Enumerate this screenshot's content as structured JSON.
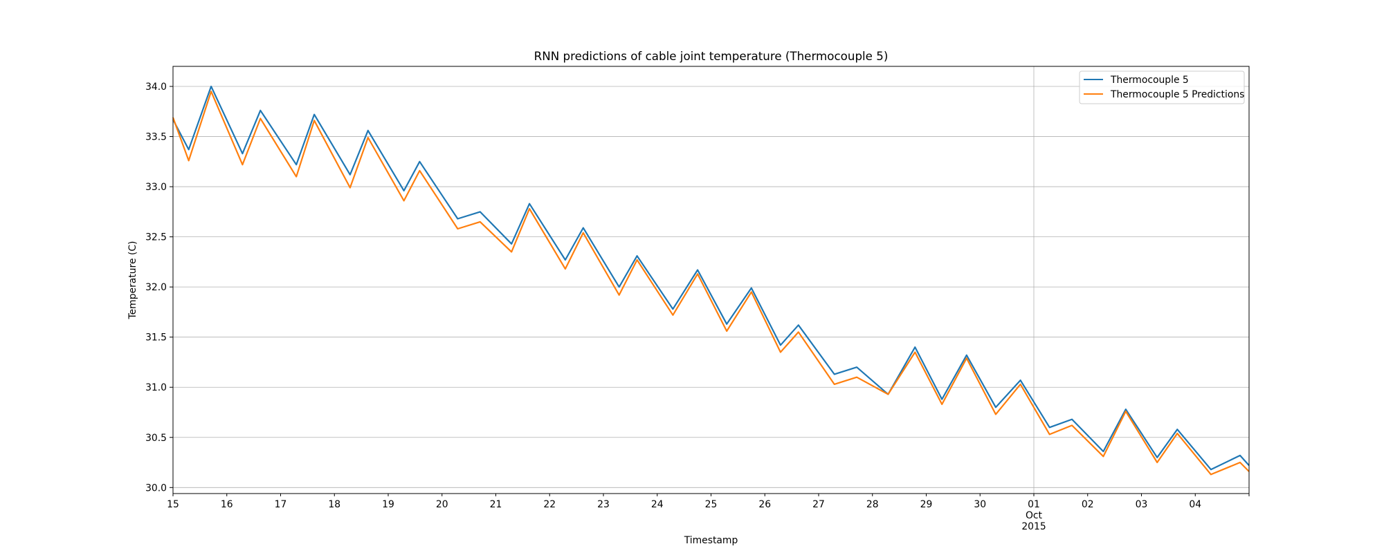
{
  "chart_data": {
    "type": "line",
    "title": "RNN predictions of cable joint temperature (Thermocouple 5)",
    "xlabel": "Timestamp",
    "ylabel": "Temperature (C)",
    "xlim": [
      "2015-09-15",
      "2015-10-05"
    ],
    "ylim": [
      29.94,
      34.2
    ],
    "grid": true,
    "legend_position": "top-right",
    "x_tick_labels": [
      "15",
      "16",
      "17",
      "18",
      "19",
      "20",
      "21",
      "22",
      "23",
      "24",
      "25",
      "26",
      "27",
      "28",
      "29",
      "30",
      "01",
      "02",
      "03",
      "04"
    ],
    "x_month_label": {
      "date": "2015-10-01",
      "lines": [
        "Oct",
        "2015"
      ]
    },
    "y_ticks": [
      30.0,
      30.5,
      31.0,
      31.5,
      32.0,
      32.5,
      33.0,
      33.5,
      34.0
    ],
    "y_tick_labels": [
      "30.0",
      "30.5",
      "31.0",
      "31.5",
      "32.0",
      "32.5",
      "33.0",
      "33.5",
      "34.0"
    ],
    "series": [
      {
        "name": "Thermocouple 5",
        "color": "#1f77b4",
        "x": [
          "2015-09-15 00:00",
          "2015-09-15 07:00",
          "2015-09-15 17:00",
          "2015-09-16 07:00",
          "2015-09-16 15:00",
          "2015-09-17 07:00",
          "2015-09-17 15:00",
          "2015-09-18 07:00",
          "2015-09-18 15:00",
          "2015-09-19 07:00",
          "2015-09-19 14:00",
          "2015-09-20 07:00",
          "2015-09-20 17:00",
          "2015-09-21 07:00",
          "2015-09-21 15:00",
          "2015-09-22 07:00",
          "2015-09-22 15:00",
          "2015-09-23 07:00",
          "2015-09-23 15:00",
          "2015-09-24 07:00",
          "2015-09-24 18:00",
          "2015-09-25 07:00",
          "2015-09-25 18:00",
          "2015-09-26 07:00",
          "2015-09-26 15:00",
          "2015-09-27 07:00",
          "2015-09-27 17:00",
          "2015-09-28 07:00",
          "2015-09-28 19:00",
          "2015-09-29 07:00",
          "2015-09-29 18:00",
          "2015-09-30 07:00",
          "2015-09-30 18:00",
          "2015-10-01 07:00",
          "2015-10-01 17:00",
          "2015-10-02 07:00",
          "2015-10-02 17:00",
          "2015-10-03 07:00",
          "2015-10-03 16:00",
          "2015-10-04 07:00",
          "2015-10-04 20:00",
          "2015-10-05 00:00"
        ],
        "y": [
          33.67,
          33.37,
          34.0,
          33.33,
          33.76,
          33.22,
          33.72,
          33.12,
          33.56,
          32.96,
          33.25,
          32.68,
          32.75,
          32.43,
          32.83,
          32.27,
          32.59,
          32.0,
          32.31,
          31.78,
          32.17,
          31.63,
          31.99,
          31.42,
          31.62,
          31.13,
          31.2,
          30.93,
          31.4,
          30.88,
          31.32,
          30.8,
          31.07,
          30.6,
          30.68,
          30.36,
          30.78,
          30.3,
          30.58,
          30.18,
          30.32,
          30.22
        ]
      },
      {
        "name": "Thermocouple 5 Predictions",
        "color": "#ff7f0e",
        "x": [
          "2015-09-15 00:00",
          "2015-09-15 07:00",
          "2015-09-15 17:00",
          "2015-09-16 07:00",
          "2015-09-16 15:00",
          "2015-09-17 07:00",
          "2015-09-17 15:00",
          "2015-09-18 07:00",
          "2015-09-18 15:00",
          "2015-09-19 07:00",
          "2015-09-19 14:00",
          "2015-09-20 07:00",
          "2015-09-20 17:00",
          "2015-09-21 07:00",
          "2015-09-21 15:00",
          "2015-09-22 07:00",
          "2015-09-22 15:00",
          "2015-09-23 07:00",
          "2015-09-23 15:00",
          "2015-09-24 07:00",
          "2015-09-24 18:00",
          "2015-09-25 07:00",
          "2015-09-25 18:00",
          "2015-09-26 07:00",
          "2015-09-26 15:00",
          "2015-09-27 07:00",
          "2015-09-27 17:00",
          "2015-09-28 07:00",
          "2015-09-28 19:00",
          "2015-09-29 07:00",
          "2015-09-29 18:00",
          "2015-09-30 07:00",
          "2015-09-30 18:00",
          "2015-10-01 07:00",
          "2015-10-01 17:00",
          "2015-10-02 07:00",
          "2015-10-02 17:00",
          "2015-10-03 07:00",
          "2015-10-03 16:00",
          "2015-10-04 07:00",
          "2015-10-04 20:00",
          "2015-10-05 00:00"
        ],
        "y": [
          33.69,
          33.26,
          33.95,
          33.22,
          33.68,
          33.1,
          33.66,
          32.99,
          33.49,
          32.86,
          33.16,
          32.58,
          32.65,
          32.35,
          32.78,
          32.18,
          32.54,
          31.92,
          32.27,
          31.72,
          32.13,
          31.56,
          31.95,
          31.35,
          31.55,
          31.03,
          31.1,
          30.93,
          31.35,
          30.83,
          31.29,
          30.73,
          31.03,
          30.53,
          30.62,
          30.31,
          30.76,
          30.25,
          30.54,
          30.13,
          30.25,
          30.16
        ]
      }
    ]
  }
}
